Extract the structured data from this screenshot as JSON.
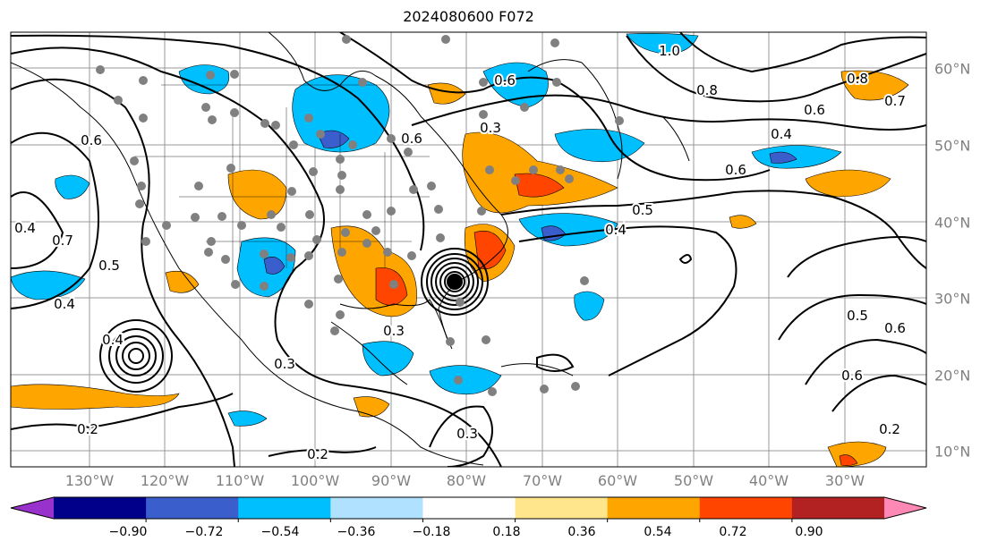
{
  "title": "2024080600 F072",
  "lon_labels": [
    "130°W",
    "120°W",
    "110°W",
    "100°W",
    "90°W",
    "80°W",
    "70°W",
    "60°W",
    "50°W",
    "40°W",
    "30°W"
  ],
  "lat_labels": [
    "60°N",
    "50°N",
    "40°N",
    "30°N",
    "20°N",
    "10°N"
  ],
  "contour_labels": [
    "0.2",
    "0.2",
    "0.2",
    "0.3",
    "0.3",
    "0.3",
    "0.3",
    "0.4",
    "0.4",
    "0.4",
    "0.4",
    "0.4",
    "0.5",
    "0.5",
    "0.5",
    "0.6",
    "0.6",
    "0.6",
    "0.6",
    "0.6",
    "0.6",
    "0.6",
    "0.7",
    "0.7",
    "0.8",
    "0.8",
    "1.0"
  ],
  "colorbar": {
    "tick_labels": [
      "−0.90",
      "−0.72",
      "−0.54",
      "−0.36",
      "−0.18",
      "0.18",
      "0.36",
      "0.54",
      "0.72",
      "0.90"
    ],
    "colors": [
      "#9932cc",
      "#00008b",
      "#3a5fcd",
      "#00bfff",
      "#b0e2ff",
      "#ffffff",
      "#ffe68c",
      "#ffa500",
      "#ff4500",
      "#b22222",
      "#ff88b4"
    ]
  }
}
